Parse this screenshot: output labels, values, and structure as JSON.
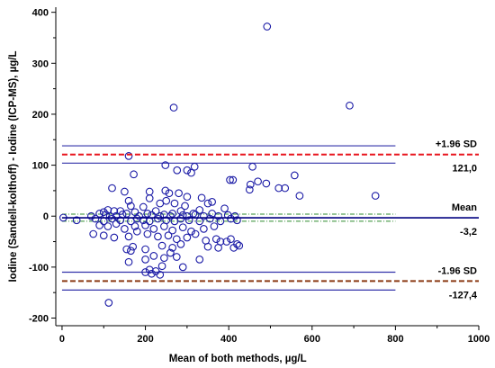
{
  "chart_data": {
    "type": "scatter",
    "title": "",
    "xlabel": "Mean of both methods, µg/L",
    "ylabel": "Iodine (Sandell-kolthoff) - Iodine (ICP-MS), µg/L",
    "xlim": [
      -15,
      1000
    ],
    "ylim": [
      -215,
      410
    ],
    "x_ticks": [
      "0",
      "200",
      "400",
      "600",
      "800",
      "1000"
    ],
    "y_ticks": [
      "400",
      "300",
      "200",
      "100",
      "0",
      "-100",
      "-200"
    ],
    "x_tick_values": [
      0,
      200,
      400,
      600,
      800,
      1000
    ],
    "y_tick_values": [
      400,
      300,
      200,
      100,
      0,
      -100,
      -200
    ],
    "grid": false,
    "lines": {
      "mean": -3.2,
      "mean_ci": [
        -10,
        4
      ],
      "upper_loa": 121.0,
      "upper_loa_ci": [
        104,
        138
      ],
      "lower_loa": -127.4,
      "lower_loa_ci": [
        -145,
        -110
      ],
      "x_extent": [
        0,
        800
      ]
    },
    "annotations": {
      "upper_label": "+1.96 SD",
      "upper_value": "121,0",
      "mean_label": "Mean",
      "mean_value": "-3,2",
      "lower_label": "-1.96 SD",
      "lower_value": "-127,4"
    },
    "colors": {
      "points": "#1a1aa6",
      "limit_lines": "#3333aa",
      "loa_dashed": "#e8141c",
      "lower_loa_dashed": "#8b3a14",
      "mean_line": "#000080",
      "mean_ci": "#2e8b2e"
    },
    "points": [
      [
        492,
        372
      ],
      [
        690,
        217
      ],
      [
        268,
        213
      ],
      [
        160,
        118
      ],
      [
        318,
        97
      ],
      [
        248,
        100
      ],
      [
        457,
        97
      ],
      [
        558,
        80
      ],
      [
        172,
        82
      ],
      [
        276,
        90
      ],
      [
        300,
        90
      ],
      [
        310,
        85
      ],
      [
        403,
        71
      ],
      [
        410,
        71
      ],
      [
        490,
        64
      ],
      [
        452,
        62
      ],
      [
        470,
        68
      ],
      [
        535,
        55
      ],
      [
        450,
        52
      ],
      [
        520,
        55
      ],
      [
        335,
        36
      ],
      [
        752,
        40
      ],
      [
        570,
        40
      ],
      [
        248,
        50
      ],
      [
        257,
        45
      ],
      [
        280,
        45
      ],
      [
        210,
        48
      ],
      [
        150,
        48
      ],
      [
        300,
        38
      ],
      [
        250,
        30
      ],
      [
        235,
        25
      ],
      [
        160,
        30
      ],
      [
        210,
        35
      ],
      [
        120,
        55
      ],
      [
        165,
        20
      ],
      [
        195,
        18
      ],
      [
        270,
        25
      ],
      [
        295,
        20
      ],
      [
        350,
        25
      ],
      [
        360,
        28
      ],
      [
        390,
        15
      ],
      [
        140,
        10
      ],
      [
        100,
        8
      ],
      [
        110,
        12
      ],
      [
        125,
        10
      ],
      [
        155,
        5
      ],
      [
        175,
        8
      ],
      [
        205,
        5
      ],
      [
        225,
        10
      ],
      [
        265,
        5
      ],
      [
        285,
        10
      ],
      [
        315,
        5
      ],
      [
        330,
        12
      ],
      [
        70,
        0
      ],
      [
        90,
        5
      ],
      [
        105,
        3
      ],
      [
        115,
        0
      ],
      [
        130,
        0
      ],
      [
        145,
        3
      ],
      [
        185,
        0
      ],
      [
        215,
        2
      ],
      [
        235,
        0
      ],
      [
        245,
        3
      ],
      [
        260,
        0
      ],
      [
        290,
        2
      ],
      [
        300,
        0
      ],
      [
        320,
        3
      ],
      [
        340,
        0
      ],
      [
        360,
        5
      ],
      [
        375,
        0
      ],
      [
        398,
        2
      ],
      [
        415,
        0
      ],
      [
        3,
        -3
      ],
      [
        35,
        -8
      ],
      [
        80,
        -5
      ],
      [
        100,
        -10
      ],
      [
        120,
        -5
      ],
      [
        140,
        -8
      ],
      [
        165,
        -10
      ],
      [
        180,
        -5
      ],
      [
        195,
        -8
      ],
      [
        210,
        -10
      ],
      [
        230,
        -5
      ],
      [
        250,
        -8
      ],
      [
        270,
        -10
      ],
      [
        285,
        -5
      ],
      [
        305,
        -8
      ],
      [
        330,
        -10
      ],
      [
        355,
        -5
      ],
      [
        380,
        -10
      ],
      [
        405,
        -5
      ],
      [
        420,
        -8
      ],
      [
        90,
        -18
      ],
      [
        110,
        -20
      ],
      [
        130,
        -15
      ],
      [
        150,
        -25
      ],
      [
        175,
        -20
      ],
      [
        200,
        -18
      ],
      [
        220,
        -25
      ],
      [
        245,
        -20
      ],
      [
        265,
        -28
      ],
      [
        290,
        -22
      ],
      [
        310,
        -30
      ],
      [
        340,
        -25
      ],
      [
        365,
        -20
      ],
      [
        75,
        -35
      ],
      [
        100,
        -38
      ],
      [
        125,
        -42
      ],
      [
        160,
        -40
      ],
      [
        180,
        -30
      ],
      [
        205,
        -35
      ],
      [
        230,
        -40
      ],
      [
        255,
        -38
      ],
      [
        275,
        -45
      ],
      [
        300,
        -42
      ],
      [
        320,
        -35
      ],
      [
        345,
        -48
      ],
      [
        370,
        -45
      ],
      [
        395,
        -50
      ],
      [
        420,
        -55
      ],
      [
        170,
        -60
      ],
      [
        200,
        -65
      ],
      [
        240,
        -58
      ],
      [
        265,
        -62
      ],
      [
        285,
        -55
      ],
      [
        155,
        -65
      ],
      [
        165,
        -68
      ],
      [
        350,
        -60
      ],
      [
        375,
        -62
      ],
      [
        380,
        -50
      ],
      [
        412,
        -62
      ],
      [
        405,
        -45
      ],
      [
        425,
        -58
      ],
      [
        200,
        -85
      ],
      [
        220,
        -78
      ],
      [
        245,
        -82
      ],
      [
        260,
        -72
      ],
      [
        275,
        -80
      ],
      [
        330,
        -85
      ],
      [
        160,
        -90
      ],
      [
        210,
        -105
      ],
      [
        240,
        -98
      ],
      [
        290,
        -100
      ],
      [
        200,
        -110
      ],
      [
        215,
        -113
      ],
      [
        225,
        -108
      ],
      [
        235,
        -115
      ],
      [
        112,
        -170
      ]
    ]
  }
}
